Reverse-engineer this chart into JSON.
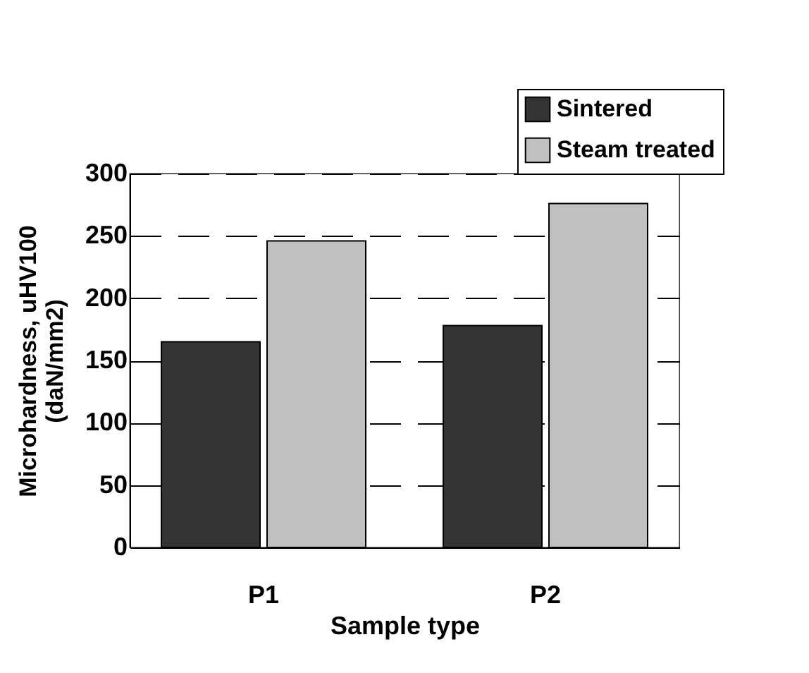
{
  "chart_data": {
    "type": "bar",
    "xlabel": "Sample type",
    "ylabel": "Microhardness, uHV100\n(daN/mm2)",
    "categories": [
      "P1",
      "P2"
    ],
    "series": [
      {
        "name": "Sintered",
        "color": "#333333",
        "values": [
          165,
          178
        ]
      },
      {
        "name": "Steam treated",
        "color": "#c0c0c0",
        "values": [
          246,
          276
        ]
      }
    ],
    "ylim": [
      0,
      300
    ],
    "yticks": [
      0,
      50,
      100,
      150,
      200,
      250,
      300
    ],
    "grid": "y",
    "legend": "top right"
  }
}
